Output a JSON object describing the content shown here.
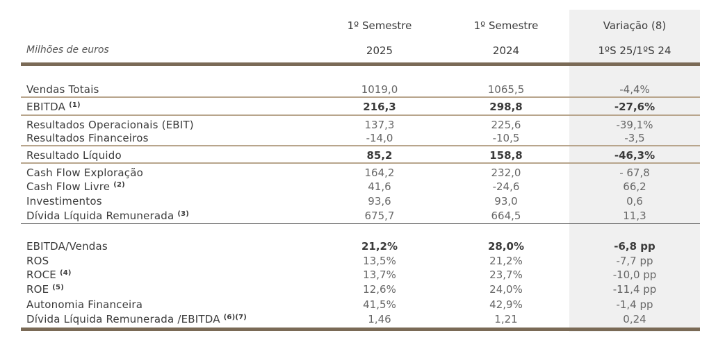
{
  "header": {
    "col1_line1": "1º Semestre",
    "col2_line1": "1º Semestre",
    "col3_line1": "Variação (8)",
    "col1_line2": "2025",
    "col2_line2": "2024",
    "col3_line2": "1ºS 25/1ºS 24",
    "units": "Milhões de euros"
  },
  "rows": [
    {
      "label": "Vendas Totais",
      "sup": "",
      "v1": "1019,0",
      "v2": "1065,5",
      "v3": "-4,4%"
    },
    {
      "label": "EBITDA ",
      "sup": "(1)",
      "v1": "216,3",
      "v2": "298,8",
      "v3": "-27,6%"
    },
    {
      "label": "Resultados Operacionais (EBIT)",
      "sup": "",
      "v1": "137,3",
      "v2": "225,6",
      "v3": "-39,1%"
    },
    {
      "label": "Resultados Financeiros",
      "sup": "",
      "v1": "-14,0",
      "v2": "-10,5",
      "v3": "-3,5"
    },
    {
      "label": "Resultado Líquido",
      "sup": "",
      "v1": "85,2",
      "v2": "158,8",
      "v3": "-46,3%"
    },
    {
      "label": "Cash Flow Exploração",
      "sup": "",
      "v1": "164,2",
      "v2": "232,0",
      "v3": "- 67,8"
    },
    {
      "label": "Cash Flow Livre ",
      "sup": "(2)",
      "v1": "41,6",
      "v2": "-24,6",
      "v3": "66,2"
    },
    {
      "label": "Investimentos",
      "sup": "",
      "v1": "93,6",
      "v2": "93,0",
      "v3": "0,6"
    },
    {
      "label": "Dívida Líquida Remunerada ",
      "sup": "(3)",
      "v1": "675,7",
      "v2": "664,5",
      "v3": "11,3"
    },
    {
      "label": "EBITDA/Vendas",
      "sup": "",
      "v1": "21,2%",
      "v2": "28,0%",
      "v3": "-6,8 pp"
    },
    {
      "label": "ROS",
      "sup": "",
      "v1": "13,5%",
      "v2": "21,2%",
      "v3": "-7,7 pp"
    },
    {
      "label": "ROCE ",
      "sup": "(4)",
      "v1": "13,7%",
      "v2": "23,7%",
      "v3": "-10,0 pp"
    },
    {
      "label": "ROE ",
      "sup": "(5)",
      "v1": "12,6%",
      "v2": "24,0%",
      "v3": "-11,4 pp"
    },
    {
      "label": "Autonomia Financeira",
      "sup": "",
      "v1": "41,5%",
      "v2": "42,9%",
      "v3": "-1,4 pp"
    },
    {
      "label": "Dívida Líquida Remunerada /EBITDA ",
      "sup": "(6)(7)",
      "v1": "1,46",
      "v2": "1,21",
      "v3": "0,24"
    }
  ]
}
